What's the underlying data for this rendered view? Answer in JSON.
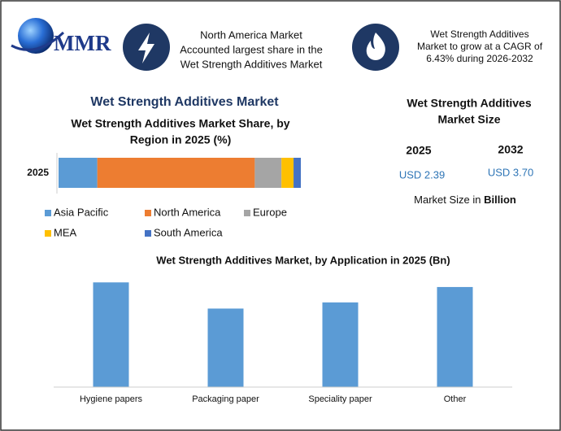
{
  "header": {
    "logo": "MMR",
    "callouts": [
      {
        "lines": [
          "North America Market",
          "Accounted largest share in the",
          "Wet Strength Additives Market"
        ]
      },
      {
        "lines": [
          "Wet Strength Additives",
          "Market to grow at a CAGR of",
          "6.43% during 2026-2032"
        ]
      }
    ]
  },
  "section_title": "Wet Strength Additives Market",
  "market_size": {
    "title_lines": [
      "Wet Strength Additives",
      "Market Size"
    ],
    "years": [
      "2025",
      "2032"
    ],
    "values": [
      "USD 2.39",
      "USD 3.70"
    ],
    "unit_prefix": "Market Size in",
    "unit": "Billion"
  },
  "chart_data": [
    {
      "type": "stacked_bar",
      "orientation": "horizontal",
      "title_lines": [
        "Wet Strength Additives Market Share, by",
        "Region in 2025 (%)"
      ],
      "categories": [
        "2025"
      ],
      "xlim": [
        0,
        100
      ],
      "series": [
        {
          "name": "Asia Pacific",
          "color": "#5b9bd5",
          "values": [
            16
          ]
        },
        {
          "name": "North America",
          "color": "#ed7d31",
          "values": [
            65
          ]
        },
        {
          "name": "Europe",
          "color": "#a5a5a5",
          "values": [
            11
          ]
        },
        {
          "name": "MEA",
          "color": "#ffc000",
          "values": [
            5
          ]
        },
        {
          "name": "South America",
          "color": "#4472c4",
          "values": [
            3
          ]
        }
      ]
    },
    {
      "type": "bar",
      "title": "Wet Strength Additives Market, by Application in 2025 (Bn)",
      "categories": [
        "Hygiene papers",
        "Packaging paper",
        "Speciality paper",
        "Other"
      ],
      "values": [
        0.68,
        0.51,
        0.55,
        0.65
      ],
      "color": "#5b9bd5",
      "ylim": [
        0,
        0.75
      ]
    }
  ]
}
